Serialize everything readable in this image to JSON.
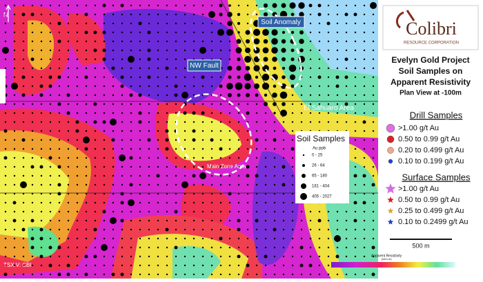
{
  "map": {
    "north": "N",
    "credit": "TSX.V: CBI",
    "labels": {
      "soil_anomaly": "Soil Anomaly",
      "nw_fault": "NW Fault",
      "el_sahuaro": "El Sahuaro Area",
      "main_zone": "Main Zone Area"
    }
  },
  "logo": {
    "name": "Colibri",
    "subtitle": "RESOURCE CORPORATION"
  },
  "title": [
    "Evelyn Gold Project",
    "Soil Samples on",
    "Apparent Resistivity",
    "Plan View at -100m"
  ],
  "drill_samples": {
    "title": "Drill Samples",
    "items": [
      ">1.00 g/t Au",
      "0.50 to 0.99 g/t Au",
      "0.20 to 0.499 g/t Au",
      "0.10 to 0.199 g/t Au"
    ]
  },
  "surface_samples": {
    "title": "Surface Samples",
    "items": [
      ">1.00 g/t Au",
      "0.50 to 0.99 g/t Au",
      "0.25 to 0.499 g/t Au",
      "0.10 to 0.2499 g/t Au"
    ]
  },
  "soil_legend": {
    "title": "Soil Samples",
    "unit": "Au ppb",
    "items": [
      "0 - 25",
      "26 - 64",
      "65 - 180",
      "181 - 404",
      "405 - 2027"
    ]
  },
  "scale": "500 m",
  "colorbar": {
    "title": "Apparent Resistivity",
    "unit": "(ohm-m)"
  }
}
